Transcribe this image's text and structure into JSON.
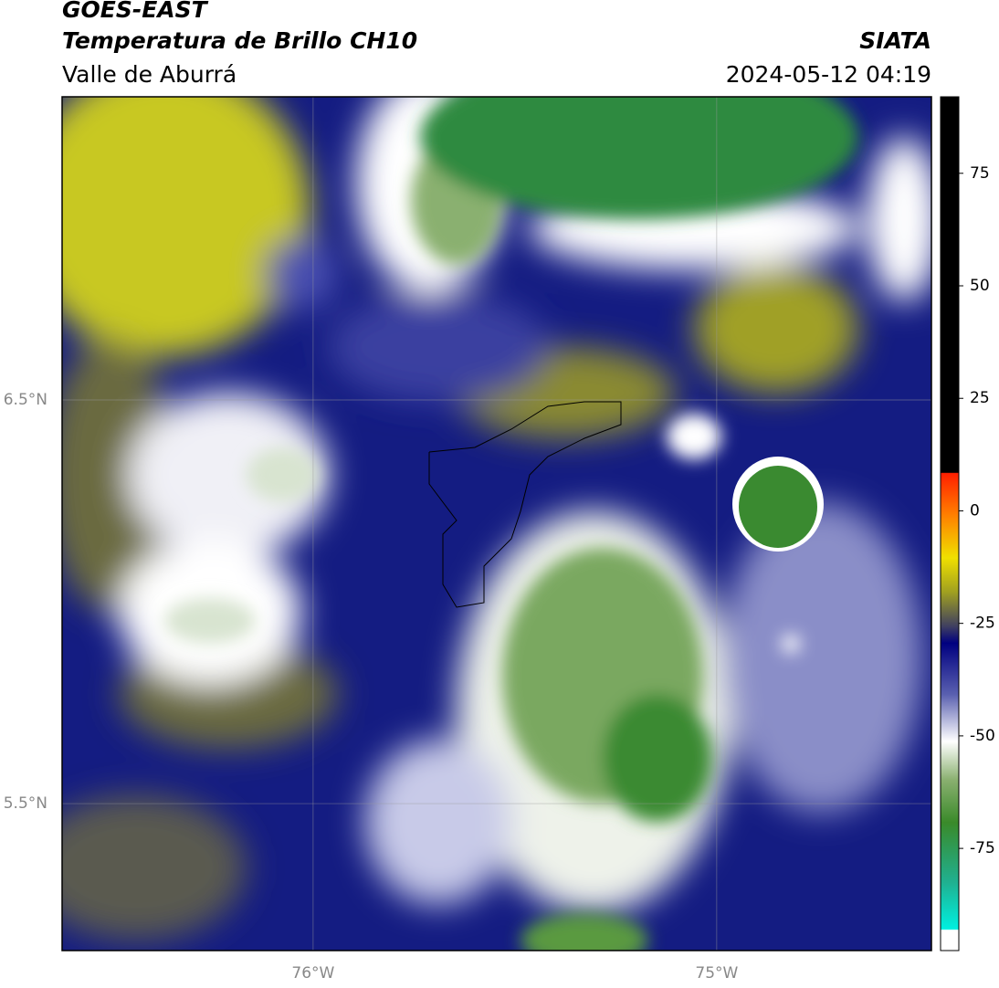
{
  "header": {
    "satellite": "GOES-EAST",
    "product": "Temperatura de Brillo CH10",
    "region": "Valle de Aburrá",
    "source": "SIATA",
    "datetime": "2024-05-12 04:19"
  },
  "map": {
    "xlim": [
      -76.622,
      -74.468
    ],
    "ylim": [
      5.136,
      7.251
    ],
    "xticks": [
      {
        "value": -76,
        "label": "76°W"
      },
      {
        "value": -75,
        "label": "75°W"
      }
    ],
    "yticks": [
      {
        "value": 6.5,
        "label": "6.5°N"
      },
      {
        "value": 5.5,
        "label": "5.5°N"
      }
    ],
    "colorbar": {
      "ylim": [
        -97.7,
        92
      ],
      "ticks": [
        75,
        50,
        25,
        0,
        -25,
        -50,
        -75
      ]
    }
  }
}
